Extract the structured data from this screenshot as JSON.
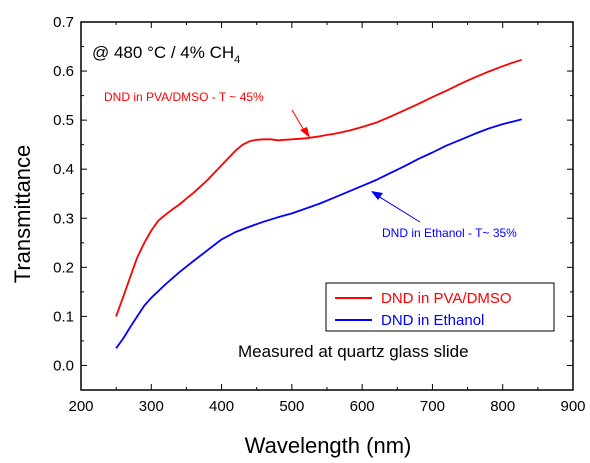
{
  "chart_data": {
    "type": "line",
    "xlabel": "Wavelength (nm)",
    "ylabel": "Transmittance",
    "xlim": [
      200,
      900
    ],
    "ylim": [
      -0.05,
      0.7
    ],
    "x_ticks": [
      "200",
      "300",
      "400",
      "500",
      "600",
      "700",
      "800",
      "900"
    ],
    "y_ticks": [
      "0.0",
      "0.1",
      "0.2",
      "0.3",
      "0.4",
      "0.5",
      "0.6",
      "0.7"
    ],
    "condition": {
      "main": "@ 480 °C / 4% CH",
      "sub": "4"
    },
    "series": [
      {
        "name": "DND in PVA/DMSO",
        "color": "#ff0000",
        "x": [
          250,
          260,
          270,
          280,
          290,
          300,
          310,
          320,
          330,
          340,
          350,
          360,
          370,
          380,
          390,
          400,
          410,
          420,
          430,
          440,
          450,
          460,
          470,
          480,
          490,
          500,
          510,
          520,
          530,
          540,
          550,
          560,
          570,
          580,
          590,
          600,
          620,
          640,
          660,
          680,
          700,
          720,
          740,
          760,
          780,
          800,
          820,
          827
        ],
        "y": [
          0.1,
          0.14,
          0.18,
          0.22,
          0.25,
          0.275,
          0.295,
          0.307,
          0.318,
          0.328,
          0.34,
          0.352,
          0.365,
          0.378,
          0.393,
          0.408,
          0.423,
          0.438,
          0.45,
          0.457,
          0.46,
          0.461,
          0.461,
          0.459,
          0.46,
          0.461,
          0.462,
          0.463,
          0.465,
          0.467,
          0.47,
          0.472,
          0.475,
          0.478,
          0.482,
          0.486,
          0.495,
          0.507,
          0.52,
          0.533,
          0.547,
          0.56,
          0.574,
          0.587,
          0.599,
          0.61,
          0.62,
          0.623
        ]
      },
      {
        "name": "DND in Ethanol",
        "color": "#0000ff",
        "x": [
          250,
          260,
          270,
          280,
          290,
          300,
          320,
          340,
          360,
          380,
          400,
          420,
          440,
          460,
          480,
          500,
          520,
          540,
          560,
          580,
          600,
          620,
          640,
          660,
          680,
          700,
          720,
          740,
          760,
          780,
          800,
          820,
          827
        ],
        "y": [
          0.035,
          0.055,
          0.078,
          0.1,
          0.122,
          0.138,
          0.165,
          0.19,
          0.213,
          0.235,
          0.257,
          0.272,
          0.283,
          0.293,
          0.302,
          0.31,
          0.32,
          0.33,
          0.342,
          0.354,
          0.366,
          0.378,
          0.392,
          0.406,
          0.421,
          0.434,
          0.448,
          0.46,
          0.472,
          0.483,
          0.492,
          0.499,
          0.502
        ]
      }
    ],
    "annotations": [
      {
        "text": "DND in PVA/DMSO - T ~ 45%",
        "color": "#ff0000"
      },
      {
        "text": "DND in Ethanol - T~ 35%",
        "color": "#0000ff"
      }
    ],
    "legend_position": "bottom-right",
    "note": "Measured at quartz glass slide"
  }
}
